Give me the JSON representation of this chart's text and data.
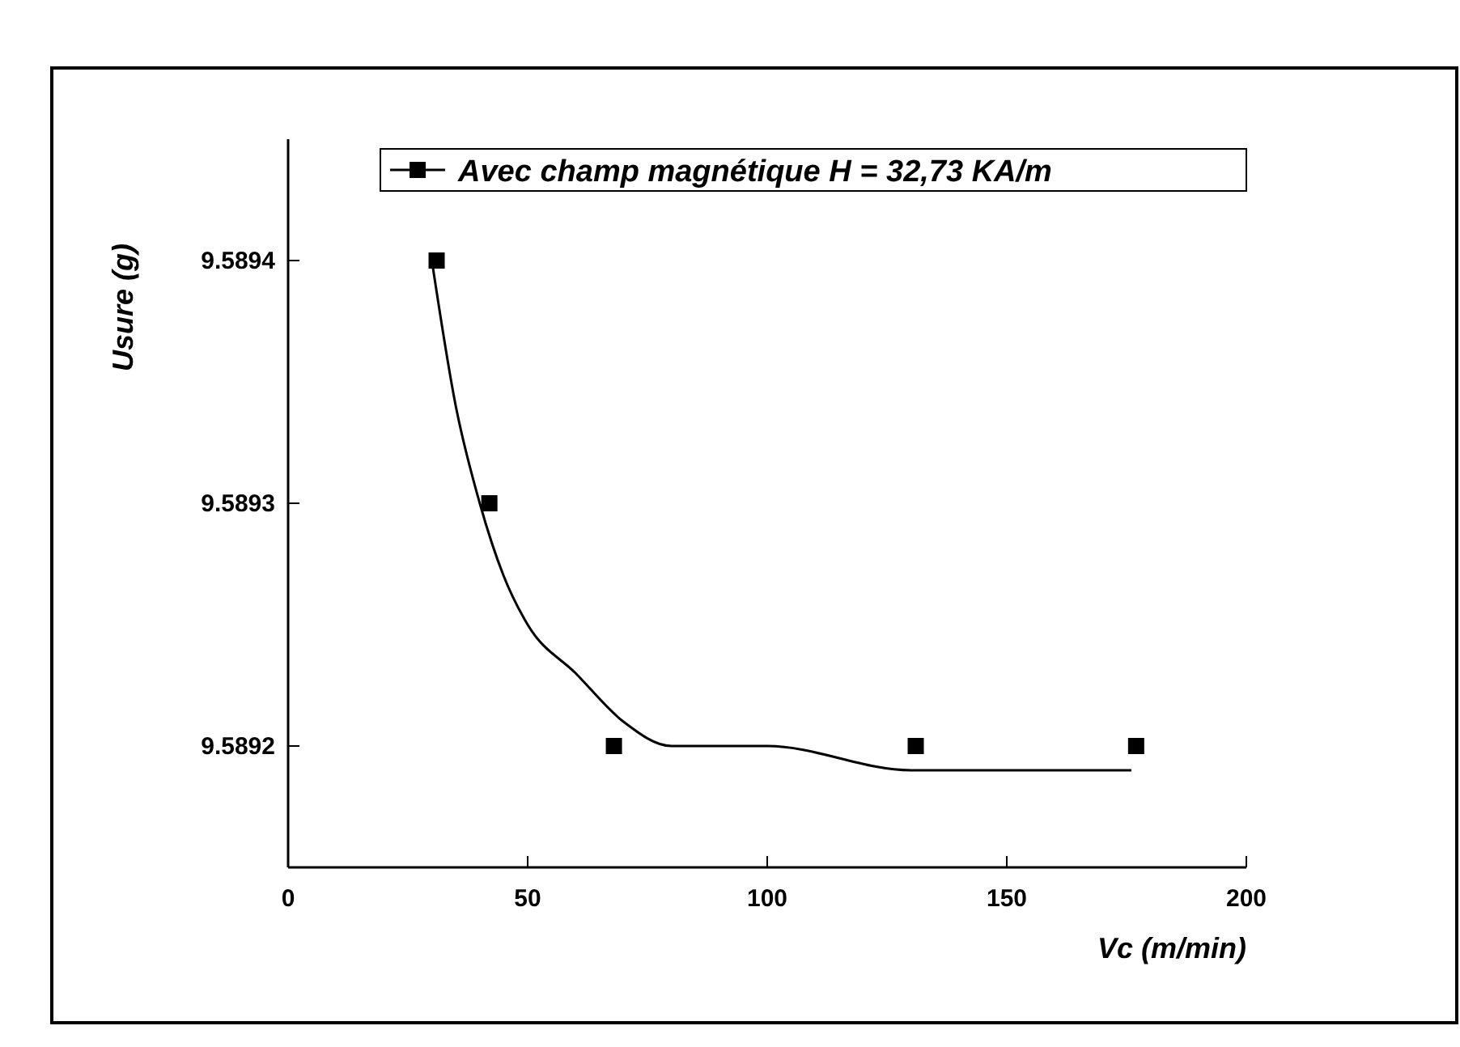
{
  "chart_data": {
    "type": "scatter",
    "xlabel": "Vc (m/min)",
    "ylabel": "Usure (g)",
    "xlim": [
      0,
      200
    ],
    "xticks": [
      0,
      50,
      100,
      150,
      200
    ],
    "ylim": [
      9.58915,
      9.58945
    ],
    "yticks": [
      9.5892,
      9.5893,
      9.5894
    ],
    "marker": "square",
    "legend": "top right",
    "grid": false,
    "series": [
      {
        "name": "Avec champ magnétique H = 32,73 KA/m",
        "color": "#000000",
        "x": [
          31,
          42,
          68,
          131,
          177
        ],
        "values": [
          9.5894,
          9.5893,
          9.5892,
          9.5892,
          9.5892
        ]
      },
      {
        "type": "line",
        "color": "#000000",
        "marker": "none",
        "x": [
          30,
          35,
          40,
          45,
          50,
          60,
          70,
          80,
          100,
          130,
          176
        ],
        "values": [
          9.5894,
          9.58934,
          9.5893,
          9.58927,
          9.58925,
          9.58923,
          9.58921,
          9.5892,
          9.5892,
          9.58919,
          9.58919
        ]
      }
    ]
  }
}
